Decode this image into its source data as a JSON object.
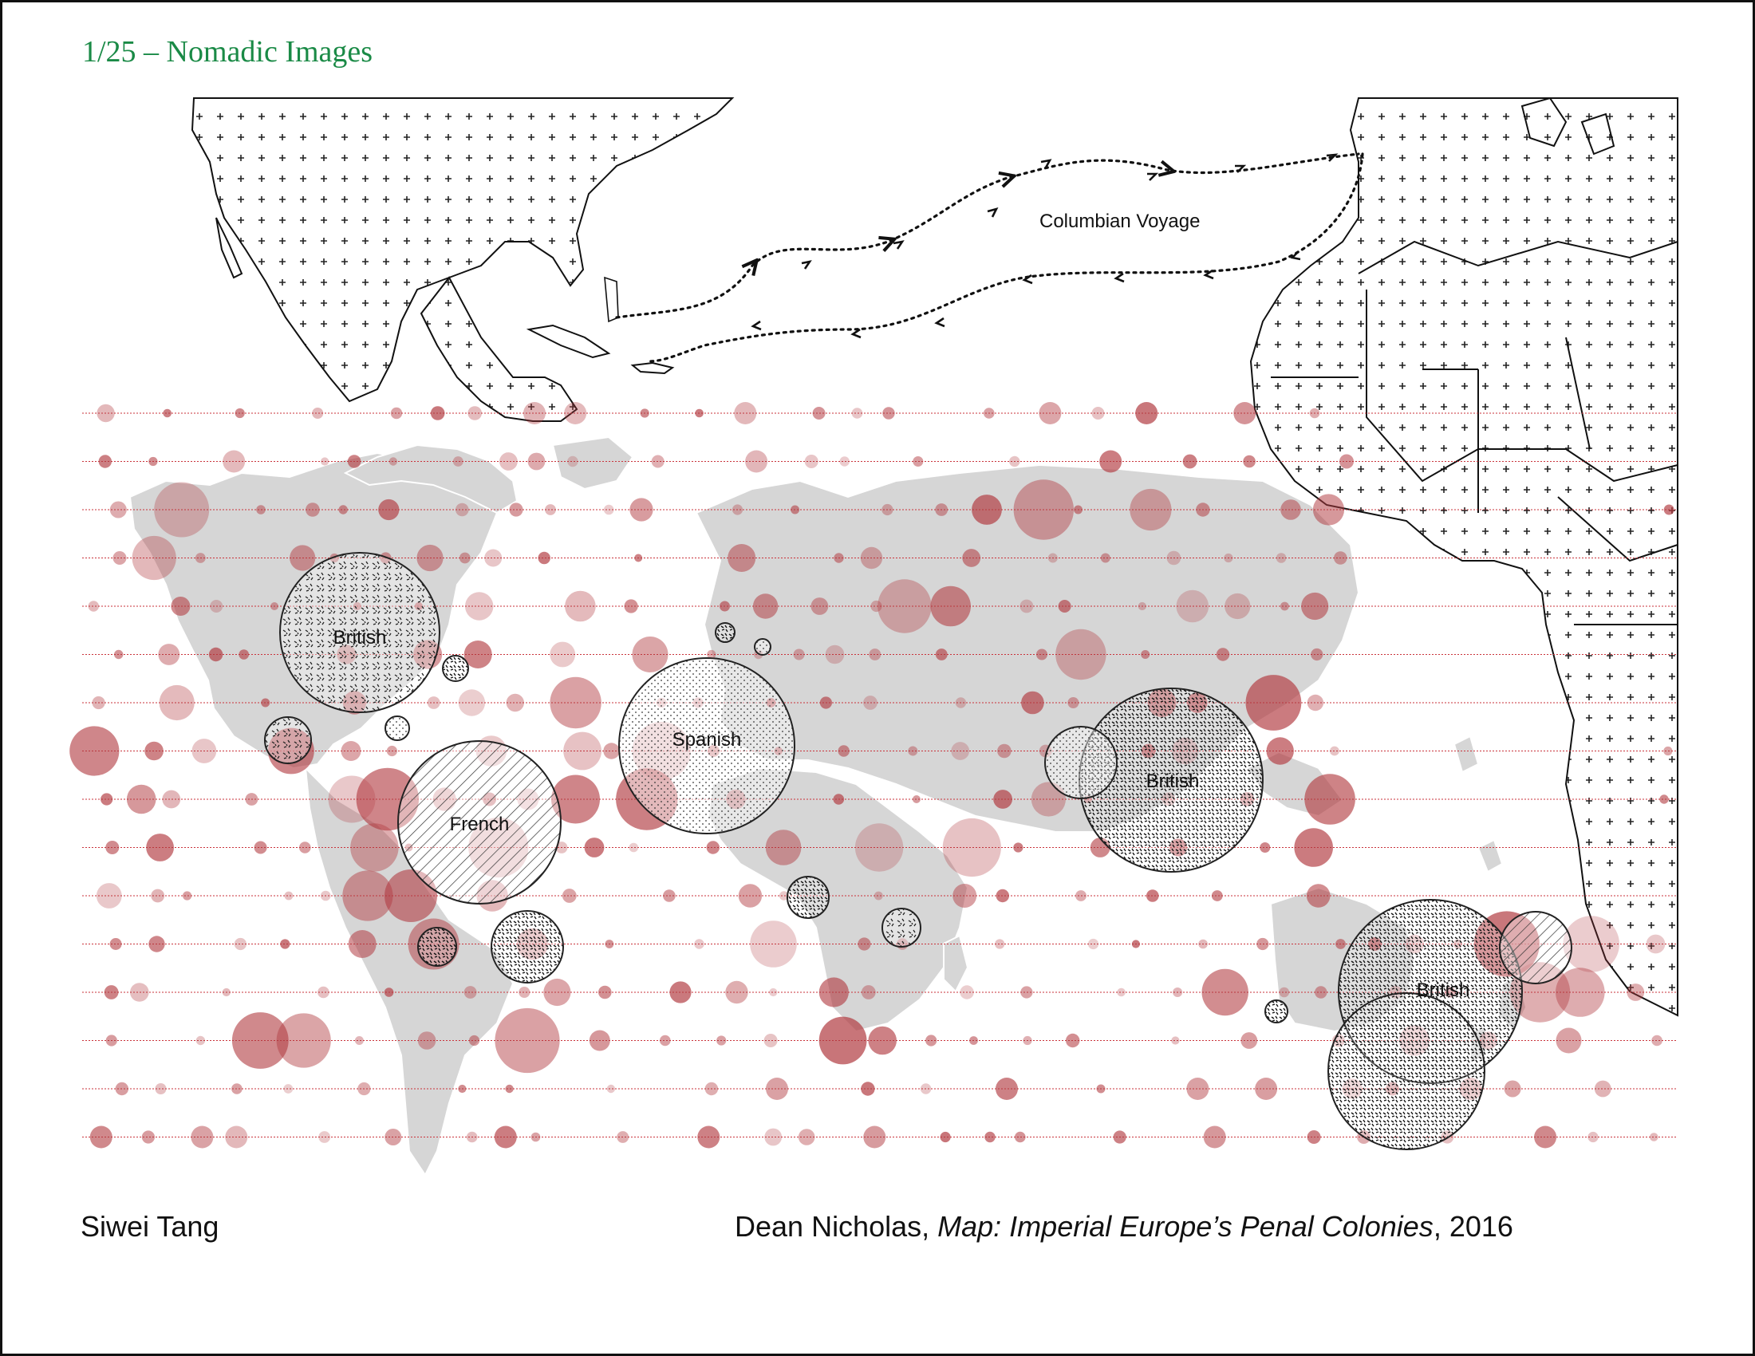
{
  "header": {
    "title": "1/25 – Nomadic Images"
  },
  "footer": {
    "author": "Siwei Tang",
    "credit_name": "Dean Nicholas, ",
    "credit_work": "Map: Imperial Europe’s Penal Colonies",
    "credit_year": ", 2016"
  },
  "map": {
    "voyage_label": "Columbian Voyage",
    "colony_labels": [
      "British",
      "French",
      "Spanish",
      "British",
      "British"
    ],
    "colors": {
      "land": "#d6d6d6",
      "dot": "#b13a40",
      "guide_line": "#c9323a",
      "hatch": "#222222"
    }
  }
}
